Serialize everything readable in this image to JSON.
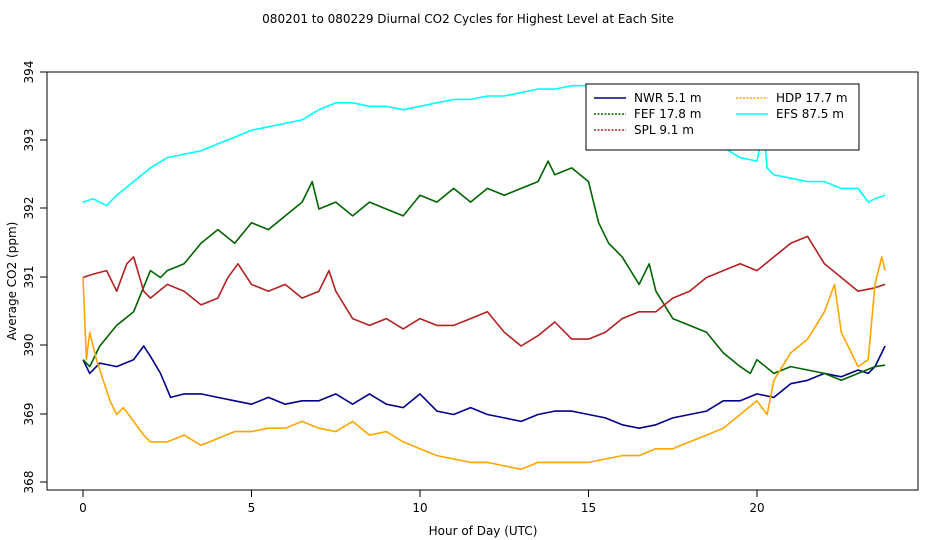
{
  "chart_data": {
    "type": "line",
    "title": "080201  to  080229 Diurnal CO2 Cycles for Highest Level at Each Site",
    "xlabel": "Hour of Day (UTC)",
    "ylabel": "Average CO2 (ppm)",
    "xlim": [
      -1,
      24.8
    ],
    "ylim": [
      368,
      394
    ],
    "xticks": [
      0,
      5,
      10,
      15,
      20
    ],
    "yticks": [
      368,
      369,
      390,
      391,
      392,
      393,
      394
    ],
    "ytick_labels": [
      "368",
      "369",
      "390",
      "391",
      "392",
      "393",
      "394"
    ],
    "grid": false,
    "legend_position": "top-right",
    "series": [
      {
        "name": "NWR  5.1 m",
        "color": "#00008b",
        "x": [
          0,
          0.2,
          0.5,
          1,
          1.5,
          1.8,
          2,
          2.3,
          2.6,
          3,
          3.5,
          4,
          4.5,
          5,
          5.5,
          6,
          6.5,
          7,
          7.5,
          8,
          8.5,
          9,
          9.5,
          10,
          10.5,
          11,
          11.5,
          12,
          12.5,
          13,
          13.5,
          14,
          14.5,
          15,
          15.5,
          16,
          16.5,
          17,
          17.5,
          18,
          18.5,
          19,
          19.5,
          20,
          20.5,
          21,
          21.5,
          22,
          22.5,
          23,
          23.3,
          23.5,
          23.8
        ],
        "y": [
          389.8,
          389.6,
          389.75,
          389.7,
          389.8,
          390.0,
          389.85,
          389.6,
          389.25,
          389.3,
          389.3,
          389.25,
          389.2,
          389.15,
          389.25,
          389.15,
          389.2,
          389.2,
          389.3,
          389.15,
          389.3,
          389.15,
          389.1,
          389.3,
          389.05,
          389.0,
          389.1,
          389.0,
          388.95,
          388.9,
          389.0,
          389.05,
          389.05,
          389.0,
          388.95,
          388.85,
          388.8,
          388.85,
          388.95,
          389.0,
          389.05,
          389.2,
          389.2,
          389.3,
          389.25,
          389.45,
          389.5,
          389.6,
          389.55,
          389.65,
          389.6,
          389.7,
          390.0
        ]
      },
      {
        "name": "FEF  17.8 m",
        "color": "#006400",
        "x": [
          0,
          0.2,
          0.5,
          1,
          1.5,
          2,
          2.3,
          2.5,
          3,
          3.5,
          4,
          4.5,
          5,
          5.5,
          6,
          6.5,
          6.8,
          7,
          7.5,
          8,
          8.5,
          9,
          9.5,
          10,
          10.5,
          11,
          11.5,
          12,
          12.5,
          13,
          13.5,
          13.8,
          14,
          14.5,
          15,
          15.3,
          15.6,
          16,
          16.5,
          16.8,
          17,
          17.5,
          18,
          18.5,
          19,
          19.5,
          19.8,
          20,
          20.5,
          21,
          21.5,
          22,
          22.5,
          23,
          23.5,
          23.8
        ],
        "y": [
          389.8,
          389.7,
          390.0,
          390.3,
          390.5,
          391.1,
          391.0,
          391.1,
          391.2,
          391.5,
          391.7,
          391.5,
          391.8,
          391.7,
          391.9,
          392.1,
          392.4,
          392.0,
          392.1,
          391.9,
          392.1,
          392.0,
          391.9,
          392.2,
          392.1,
          392.3,
          392.1,
          392.3,
          392.2,
          392.3,
          392.4,
          392.7,
          392.5,
          392.6,
          392.4,
          391.8,
          391.5,
          391.3,
          390.9,
          391.2,
          390.8,
          390.4,
          390.3,
          390.2,
          389.9,
          389.7,
          389.6,
          389.8,
          389.6,
          389.7,
          389.65,
          389.6,
          389.5,
          389.6,
          389.7,
          389.72
        ]
      },
      {
        "name": "SPL  9.1 m",
        "color": "#b22222",
        "x": [
          0,
          0.3,
          0.7,
          1,
          1.3,
          1.5,
          1.8,
          2,
          2.5,
          3,
          3.5,
          4,
          4.3,
          4.6,
          5,
          5.5,
          6,
          6.5,
          7,
          7.3,
          7.5,
          8,
          8.5,
          9,
          9.5,
          10,
          10.5,
          11,
          11.5,
          12,
          12.5,
          13,
          13.5,
          14,
          14.5,
          15,
          15.5,
          16,
          16.5,
          17,
          17.5,
          18,
          18.5,
          19,
          19.5,
          20,
          20.5,
          21,
          21.5,
          22,
          22.5,
          23,
          23.5,
          23.8
        ],
        "y": [
          391.0,
          391.05,
          391.1,
          390.8,
          391.2,
          391.3,
          390.8,
          390.7,
          390.9,
          390.8,
          390.6,
          390.7,
          391.0,
          391.2,
          390.9,
          390.8,
          390.9,
          390.7,
          390.8,
          391.1,
          390.8,
          390.4,
          390.3,
          390.4,
          390.25,
          390.4,
          390.3,
          390.3,
          390.4,
          390.5,
          390.2,
          390.0,
          390.15,
          390.35,
          390.1,
          390.1,
          390.2,
          390.4,
          390.5,
          390.5,
          390.7,
          390.8,
          391.0,
          391.1,
          391.2,
          391.1,
          391.3,
          391.5,
          391.6,
          391.2,
          391.0,
          390.8,
          390.85,
          390.9
        ]
      },
      {
        "name": "HDP  17.7 m",
        "color": "#ffa500",
        "x": [
          0,
          0.1,
          0.2,
          0.4,
          0.6,
          0.8,
          1,
          1.2,
          1.5,
          1.8,
          2,
          2.5,
          3,
          3.5,
          4,
          4.5,
          5,
          5.5,
          6,
          6.5,
          7,
          7.5,
          8,
          8.5,
          9,
          9.5,
          10,
          10.5,
          11,
          11.5,
          12,
          12.5,
          13,
          13.5,
          14,
          14.5,
          15,
          15.5,
          16,
          16.5,
          17,
          17.5,
          18,
          18.5,
          19,
          19.5,
          20,
          20.3,
          20.5,
          21,
          21.5,
          22,
          22.3,
          22.5,
          23,
          23.3,
          23.5,
          23.7,
          23.8
        ],
        "y": [
          391.0,
          389.8,
          390.2,
          389.8,
          389.5,
          389.2,
          389.0,
          389.1,
          388.9,
          388.7,
          388.6,
          388.6,
          388.7,
          388.55,
          388.65,
          388.75,
          388.75,
          388.8,
          388.8,
          388.9,
          388.8,
          388.75,
          388.9,
          388.7,
          388.75,
          388.6,
          388.5,
          388.4,
          388.35,
          388.3,
          388.3,
          388.25,
          388.2,
          388.3,
          388.3,
          388.3,
          388.3,
          388.35,
          388.4,
          388.4,
          388.5,
          388.5,
          388.6,
          388.7,
          388.8,
          389.0,
          389.2,
          389.0,
          389.5,
          389.9,
          390.1,
          390.5,
          390.9,
          390.2,
          389.7,
          389.8,
          390.9,
          391.3,
          391.1
        ]
      },
      {
        "name": "EFS  87.5 m",
        "color": "#00ffff",
        "x": [
          0,
          0.3,
          0.7,
          1,
          1.5,
          2,
          2.5,
          3,
          3.5,
          4,
          4.5,
          5,
          5.5,
          6,
          6.5,
          7,
          7.5,
          8,
          8.5,
          9,
          9.5,
          10,
          10.5,
          11,
          11.5,
          12,
          12.5,
          13,
          13.5,
          14,
          14.5,
          15,
          15.3,
          15.6,
          16,
          16.5,
          17,
          17.5,
          18,
          18.5,
          19,
          19.5,
          20,
          20.2,
          20.3,
          20.5,
          21,
          21.5,
          22,
          22.5,
          23,
          23.3,
          23.5,
          23.8
        ],
        "y": [
          392.1,
          392.15,
          392.05,
          392.2,
          392.4,
          392.6,
          392.75,
          392.8,
          392.85,
          392.95,
          393.05,
          393.15,
          393.2,
          393.25,
          393.3,
          393.45,
          393.55,
          393.55,
          393.5,
          393.5,
          393.45,
          393.5,
          393.55,
          393.6,
          393.6,
          393.65,
          393.65,
          393.7,
          393.75,
          393.75,
          393.8,
          393.8,
          393.65,
          393.5,
          393.55,
          393.4,
          393.25,
          393.1,
          393.0,
          392.95,
          392.9,
          392.75,
          392.7,
          393.2,
          392.6,
          392.5,
          392.45,
          392.4,
          392.4,
          392.3,
          392.3,
          392.1,
          392.15,
          392.2
        ]
      }
    ]
  }
}
